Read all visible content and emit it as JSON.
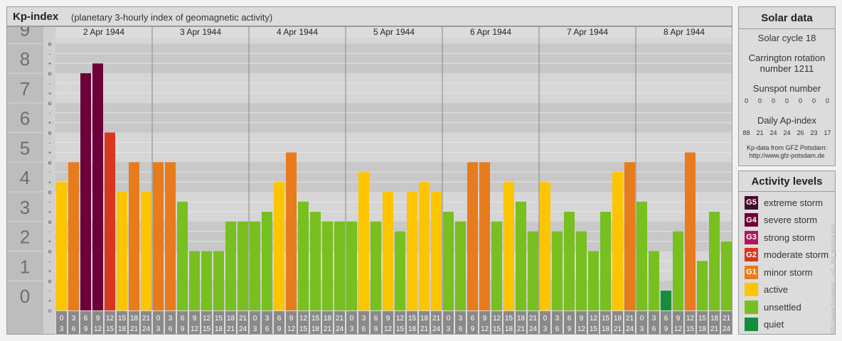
{
  "header": {
    "title": "Kp-index",
    "subtitle": "(planetary 3-hourly index of geomagnetic activity)"
  },
  "chart_data": {
    "type": "bar",
    "title": "Kp-index",
    "ylim": [
      0,
      9
    ],
    "y_ticks": [
      "0",
      "1",
      "2",
      "3",
      "4",
      "5",
      "6",
      "7",
      "8",
      "9"
    ],
    "y_minor_ticks": [
      "o",
      "+",
      "-",
      "o"
    ],
    "days": [
      "2 Apr 1944",
      "3 Apr 1944",
      "4 Apr 1944",
      "5 Apr 1944",
      "6 Apr 1944",
      "7 Apr 1944",
      "8 Apr 1944"
    ],
    "hour_ticks_top": [
      "0",
      "3",
      "6",
      "9",
      "12",
      "15",
      "18",
      "21"
    ],
    "hour_ticks_bottom": [
      "3",
      "6",
      "9",
      "12",
      "15",
      "18",
      "21",
      "24"
    ],
    "values": [
      4.33,
      5.0,
      8.0,
      8.33,
      6.0,
      4.0,
      5.0,
      4.0,
      5.0,
      5.0,
      3.67,
      2.0,
      2.0,
      2.0,
      3.0,
      3.0,
      3.0,
      3.33,
      4.33,
      5.33,
      3.67,
      3.33,
      3.0,
      3.0,
      3.0,
      4.67,
      3.0,
      4.0,
      2.67,
      4.0,
      4.33,
      4.0,
      3.33,
      3.0,
      5.0,
      5.0,
      3.0,
      4.33,
      3.67,
      2.67,
      4.33,
      2.67,
      3.33,
      2.67,
      2.0,
      3.33,
      4.67,
      5.0,
      3.67,
      2.0,
      0.67,
      2.67,
      5.33,
      1.67,
      3.33,
      2.33
    ],
    "levels": [
      {
        "min": 9,
        "color": "#4a0a2c"
      },
      {
        "min": 8,
        "color": "#6d0039"
      },
      {
        "min": 7,
        "color": "#b01560"
      },
      {
        "min": 6,
        "color": "#d9361e"
      },
      {
        "min": 5,
        "color": "#e87b1c"
      },
      {
        "min": 4,
        "color": "#fdc500"
      },
      {
        "min": 1,
        "color": "#77c01f"
      },
      {
        "min": 0,
        "color": "#158d3c"
      }
    ],
    "band_colors": [
      "#c8c8c8",
      "#d6d6d6"
    ],
    "axis_colors": {
      "y_label_bg": "#bdbdbd",
      "y_label_text": "#6e6e6e",
      "tick_box": "#8a8a8a"
    }
  },
  "solar": {
    "title": "Solar data",
    "cycle": "Solar cycle 18",
    "carrington_line1": "Carrington rotation",
    "carrington_line2": "number 1211",
    "sunspot_label": "Sunspot number",
    "sunspot_values": [
      "0",
      "0",
      "0",
      "0",
      "0",
      "0",
      "0"
    ],
    "ap_label": "Daily Ap-index",
    "ap_values": [
      "88",
      "21",
      "24",
      "24",
      "26",
      "23",
      "17"
    ],
    "source_line1": "Kp-data from GFZ Potsdam:",
    "source_line2": "http://www.gfz-potsdam.de"
  },
  "legend": {
    "title": "Activity levels",
    "items": [
      {
        "code": "G5",
        "label": "extreme storm",
        "color": "#4a0a2c"
      },
      {
        "code": "G4",
        "label": "severe storm",
        "color": "#6d0039"
      },
      {
        "code": "G3",
        "label": "strong storm",
        "color": "#b01560"
      },
      {
        "code": "G2",
        "label": "moderate storm",
        "color": "#d9361e"
      },
      {
        "code": "G1",
        "label": "minor storm",
        "color": "#e87b1c"
      },
      {
        "code": "",
        "label": "active",
        "color": "#fdc500"
      },
      {
        "code": "",
        "label": "unsettled",
        "color": "#77c01f"
      },
      {
        "code": "",
        "label": "quiet",
        "color": "#158d3c"
      }
    ]
  },
  "credit": "http://www.freewebs/...nuf.../kp_archive.php"
}
